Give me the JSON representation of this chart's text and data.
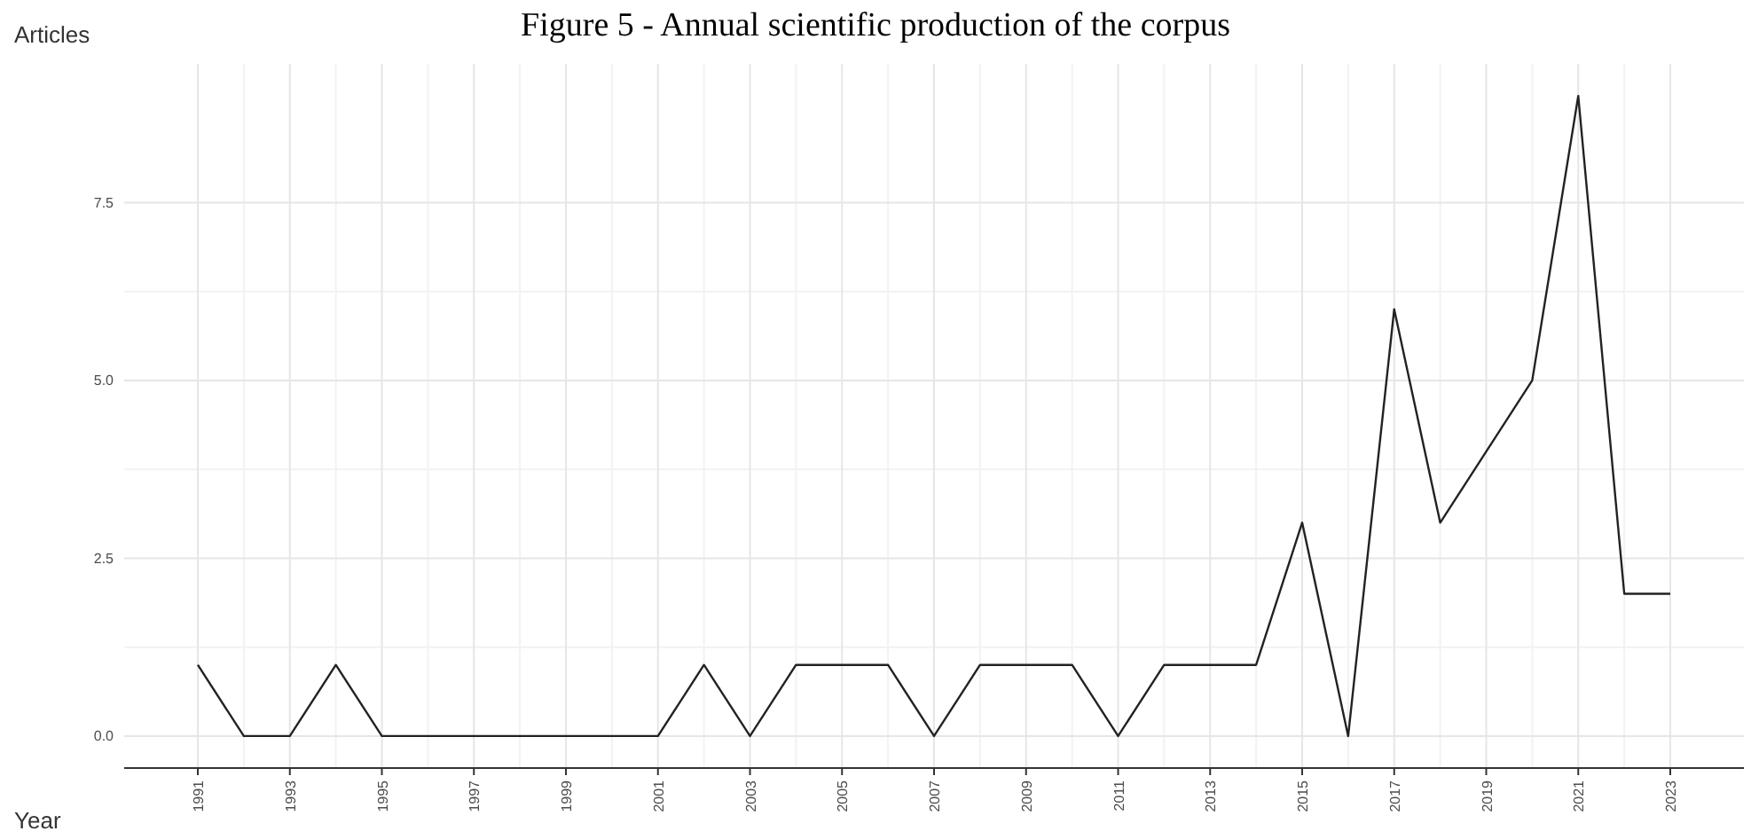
{
  "chart_data": {
    "type": "line",
    "title": "Figure 5 - Annual scientific production of the corpus",
    "xlabel": "Year",
    "ylabel": "Articles",
    "x": [
      1991,
      1992,
      1993,
      1994,
      1995,
      1996,
      1997,
      1998,
      1999,
      2000,
      2001,
      2002,
      2003,
      2004,
      2005,
      2006,
      2007,
      2008,
      2009,
      2010,
      2011,
      2012,
      2013,
      2014,
      2015,
      2016,
      2017,
      2018,
      2019,
      2020,
      2021,
      2022,
      2023
    ],
    "series": [
      {
        "color": "#222222",
        "values": [
          1,
          0,
          0,
          1,
          0,
          0,
          0,
          0,
          0,
          0,
          0,
          1,
          0,
          1,
          1,
          1,
          0,
          1,
          1,
          1,
          0,
          1,
          1,
          1,
          3,
          0,
          6,
          3,
          4,
          5,
          9,
          2,
          2
        ]
      }
    ],
    "xlim": [
      1989.4,
      2024.6
    ],
    "xticks": [
      1991,
      1993,
      1995,
      1997,
      1999,
      2001,
      2003,
      2005,
      2007,
      2009,
      2011,
      2013,
      2015,
      2017,
      2019,
      2021,
      2023
    ],
    "ylim": [
      -0.45,
      9.45
    ],
    "yticks": [
      {
        "value": 0,
        "label": "0.0"
      },
      {
        "value": 2.5,
        "label": "2.5"
      },
      {
        "value": 5,
        "label": "5.0"
      },
      {
        "value": 7.5,
        "label": "7.5"
      }
    ],
    "grid": true,
    "marker": "none",
    "line_style": "solid"
  }
}
